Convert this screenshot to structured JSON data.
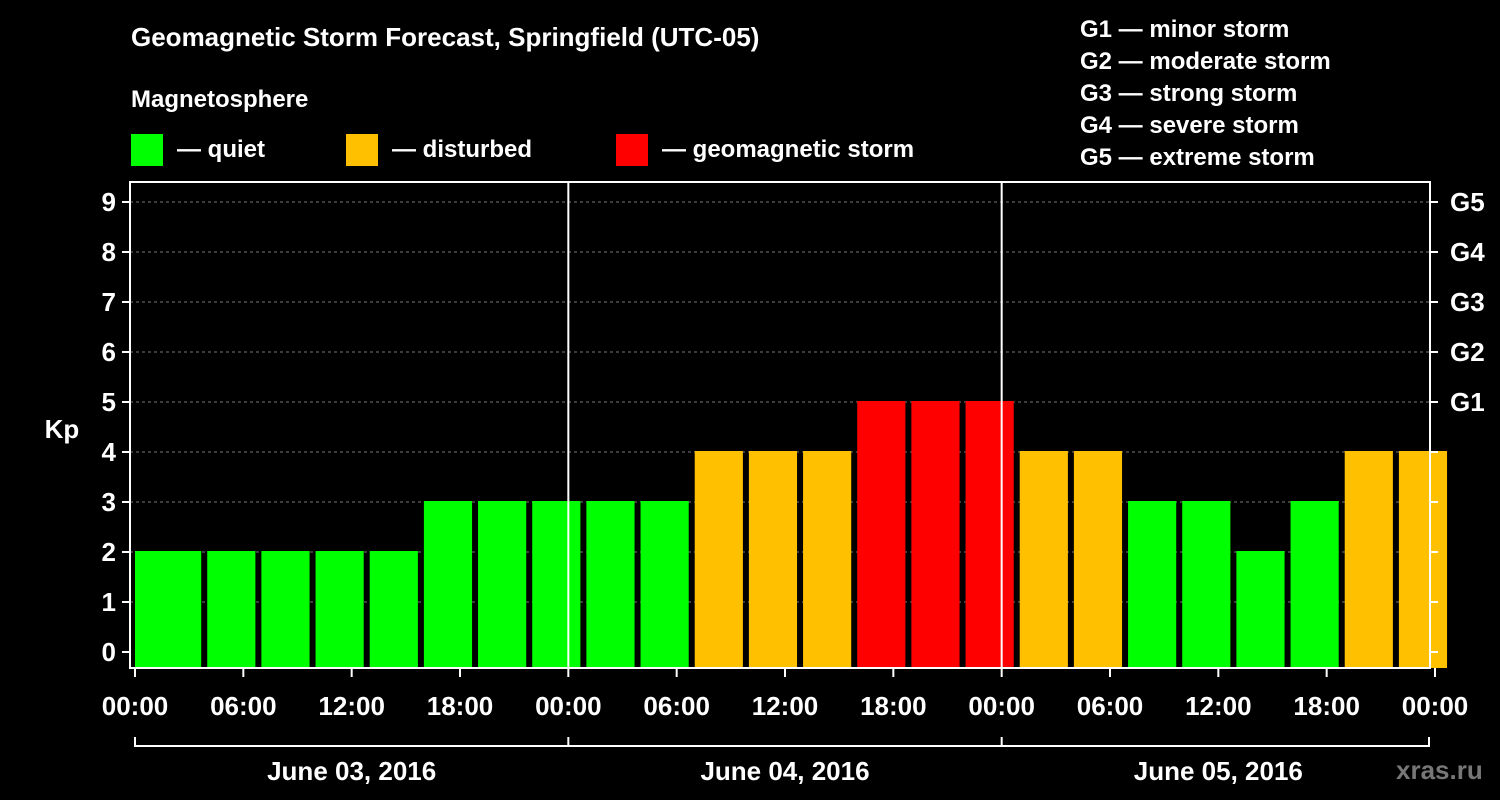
{
  "header": {
    "title": "Geomagnetic Storm Forecast, Springfield (UTC-05)",
    "subtitle": "Magnetosphere",
    "watermark": "xras.ru"
  },
  "legend": [
    {
      "label": "— quiet",
      "color": "#00ff00"
    },
    {
      "label": "— disturbed",
      "color": "#ffc000"
    },
    {
      "label": "— geomagnetic storm",
      "color": "#ff0000"
    }
  ],
  "storm_levels": [
    "G1 — minor storm",
    "G2 — moderate storm",
    "G3 — strong storm",
    "G4 — severe storm",
    "G5 — extreme storm"
  ],
  "chart_data": {
    "type": "bar",
    "ylabel": "Kp",
    "ylim": [
      0,
      9
    ],
    "yticks": [
      "0",
      "1",
      "2",
      "3",
      "4",
      "5",
      "6",
      "7",
      "8",
      "9"
    ],
    "right_axis_labels": [
      {
        "kp": 5,
        "label": "G1"
      },
      {
        "kp": 6,
        "label": "G2"
      },
      {
        "kp": 7,
        "label": "G3"
      },
      {
        "kp": 8,
        "label": "G4"
      },
      {
        "kp": 9,
        "label": "G5"
      }
    ],
    "x_tick_labels": [
      "00:00",
      "06:00",
      "12:00",
      "18:00",
      "00:00",
      "06:00",
      "12:00",
      "18:00",
      "00:00",
      "06:00",
      "12:00",
      "18:00",
      "00:00"
    ],
    "date_labels": [
      "June 03, 2016",
      "June 04, 2016",
      "June 05, 2016"
    ],
    "grid": "horizontal dashed",
    "bars": [
      {
        "start_hour": 0,
        "kp": 2,
        "color": "#00ff00"
      },
      {
        "start_hour": 1,
        "kp": 2,
        "color": "#00ff00"
      },
      {
        "start_hour": 4,
        "kp": 2,
        "color": "#00ff00"
      },
      {
        "start_hour": 7,
        "kp": 2,
        "color": "#00ff00"
      },
      {
        "start_hour": 10,
        "kp": 2,
        "color": "#00ff00"
      },
      {
        "start_hour": 13,
        "kp": 2,
        "color": "#00ff00"
      },
      {
        "start_hour": 16,
        "kp": 3,
        "color": "#00ff00"
      },
      {
        "start_hour": 19,
        "kp": 3,
        "color": "#00ff00"
      },
      {
        "start_hour": 22,
        "kp": 3,
        "color": "#00ff00"
      },
      {
        "start_hour": 25,
        "kp": 3,
        "color": "#00ff00"
      },
      {
        "start_hour": 28,
        "kp": 3,
        "color": "#00ff00"
      },
      {
        "start_hour": 31,
        "kp": 4,
        "color": "#ffc000"
      },
      {
        "start_hour": 34,
        "kp": 4,
        "color": "#ffc000"
      },
      {
        "start_hour": 37,
        "kp": 4,
        "color": "#ffc000"
      },
      {
        "start_hour": 40,
        "kp": 5,
        "color": "#ff0000"
      },
      {
        "start_hour": 43,
        "kp": 5,
        "color": "#ff0000"
      },
      {
        "start_hour": 46,
        "kp": 5,
        "color": "#ff0000"
      },
      {
        "start_hour": 49,
        "kp": 4,
        "color": "#ffc000"
      },
      {
        "start_hour": 52,
        "kp": 4,
        "color": "#ffc000"
      },
      {
        "start_hour": 55,
        "kp": 3,
        "color": "#00ff00"
      },
      {
        "start_hour": 58,
        "kp": 3,
        "color": "#00ff00"
      },
      {
        "start_hour": 61,
        "kp": 2,
        "color": "#00ff00"
      },
      {
        "start_hour": 64,
        "kp": 3,
        "color": "#00ff00"
      },
      {
        "start_hour": 67,
        "kp": 4,
        "color": "#ffc000"
      },
      {
        "start_hour": 70,
        "kp": 4,
        "color": "#ffc000"
      }
    ]
  }
}
